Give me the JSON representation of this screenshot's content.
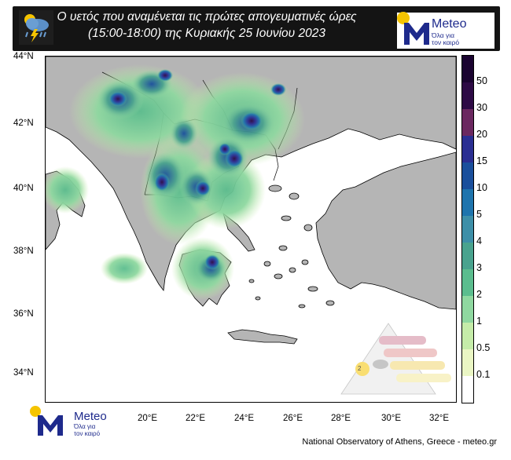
{
  "title": {
    "line1": "Ο υετός που αναμένεται τις πρώτες απογευματινές ώρες",
    "line2": "(15:00-18:00) της Κυριακής 25 Ιουνίου 2023"
  },
  "logo": {
    "name": "Meteo",
    "tagline_line1": "Όλα για",
    "tagline_line2": "τον καιρό",
    "brand_color": "#1e2a8c",
    "sun_color": "#f5c400"
  },
  "axes": {
    "lat_labels": [
      "44°N",
      "42°N",
      "40°N",
      "38°N",
      "36°N",
      "34°N"
    ],
    "lon_labels": [
      "20°E",
      "22°E",
      "24°E",
      "26°E",
      "28°E",
      "30°E",
      "32°E"
    ]
  },
  "colorbar": {
    "labels": [
      "50",
      "30",
      "20",
      "15",
      "10",
      "5",
      "4",
      "3",
      "2",
      "1",
      "0.5",
      "0.1"
    ],
    "colors": [
      "#2d0a45",
      "#6b2860",
      "#2a2e92",
      "#1a4f9c",
      "#1e74ad",
      "#3d8fa8",
      "#49a38e",
      "#5bbd8e",
      "#8fd8a0",
      "#c5eca9",
      "#eaf6c4",
      "#ffffff"
    ]
  },
  "colors": {
    "land": "#b5b5b5",
    "sea": "#ffffff",
    "title_bg": "#141414"
  },
  "risk_pyramid": {
    "level": "2"
  },
  "credit": "National Observatory of Athens, Greece - meteo.gr"
}
